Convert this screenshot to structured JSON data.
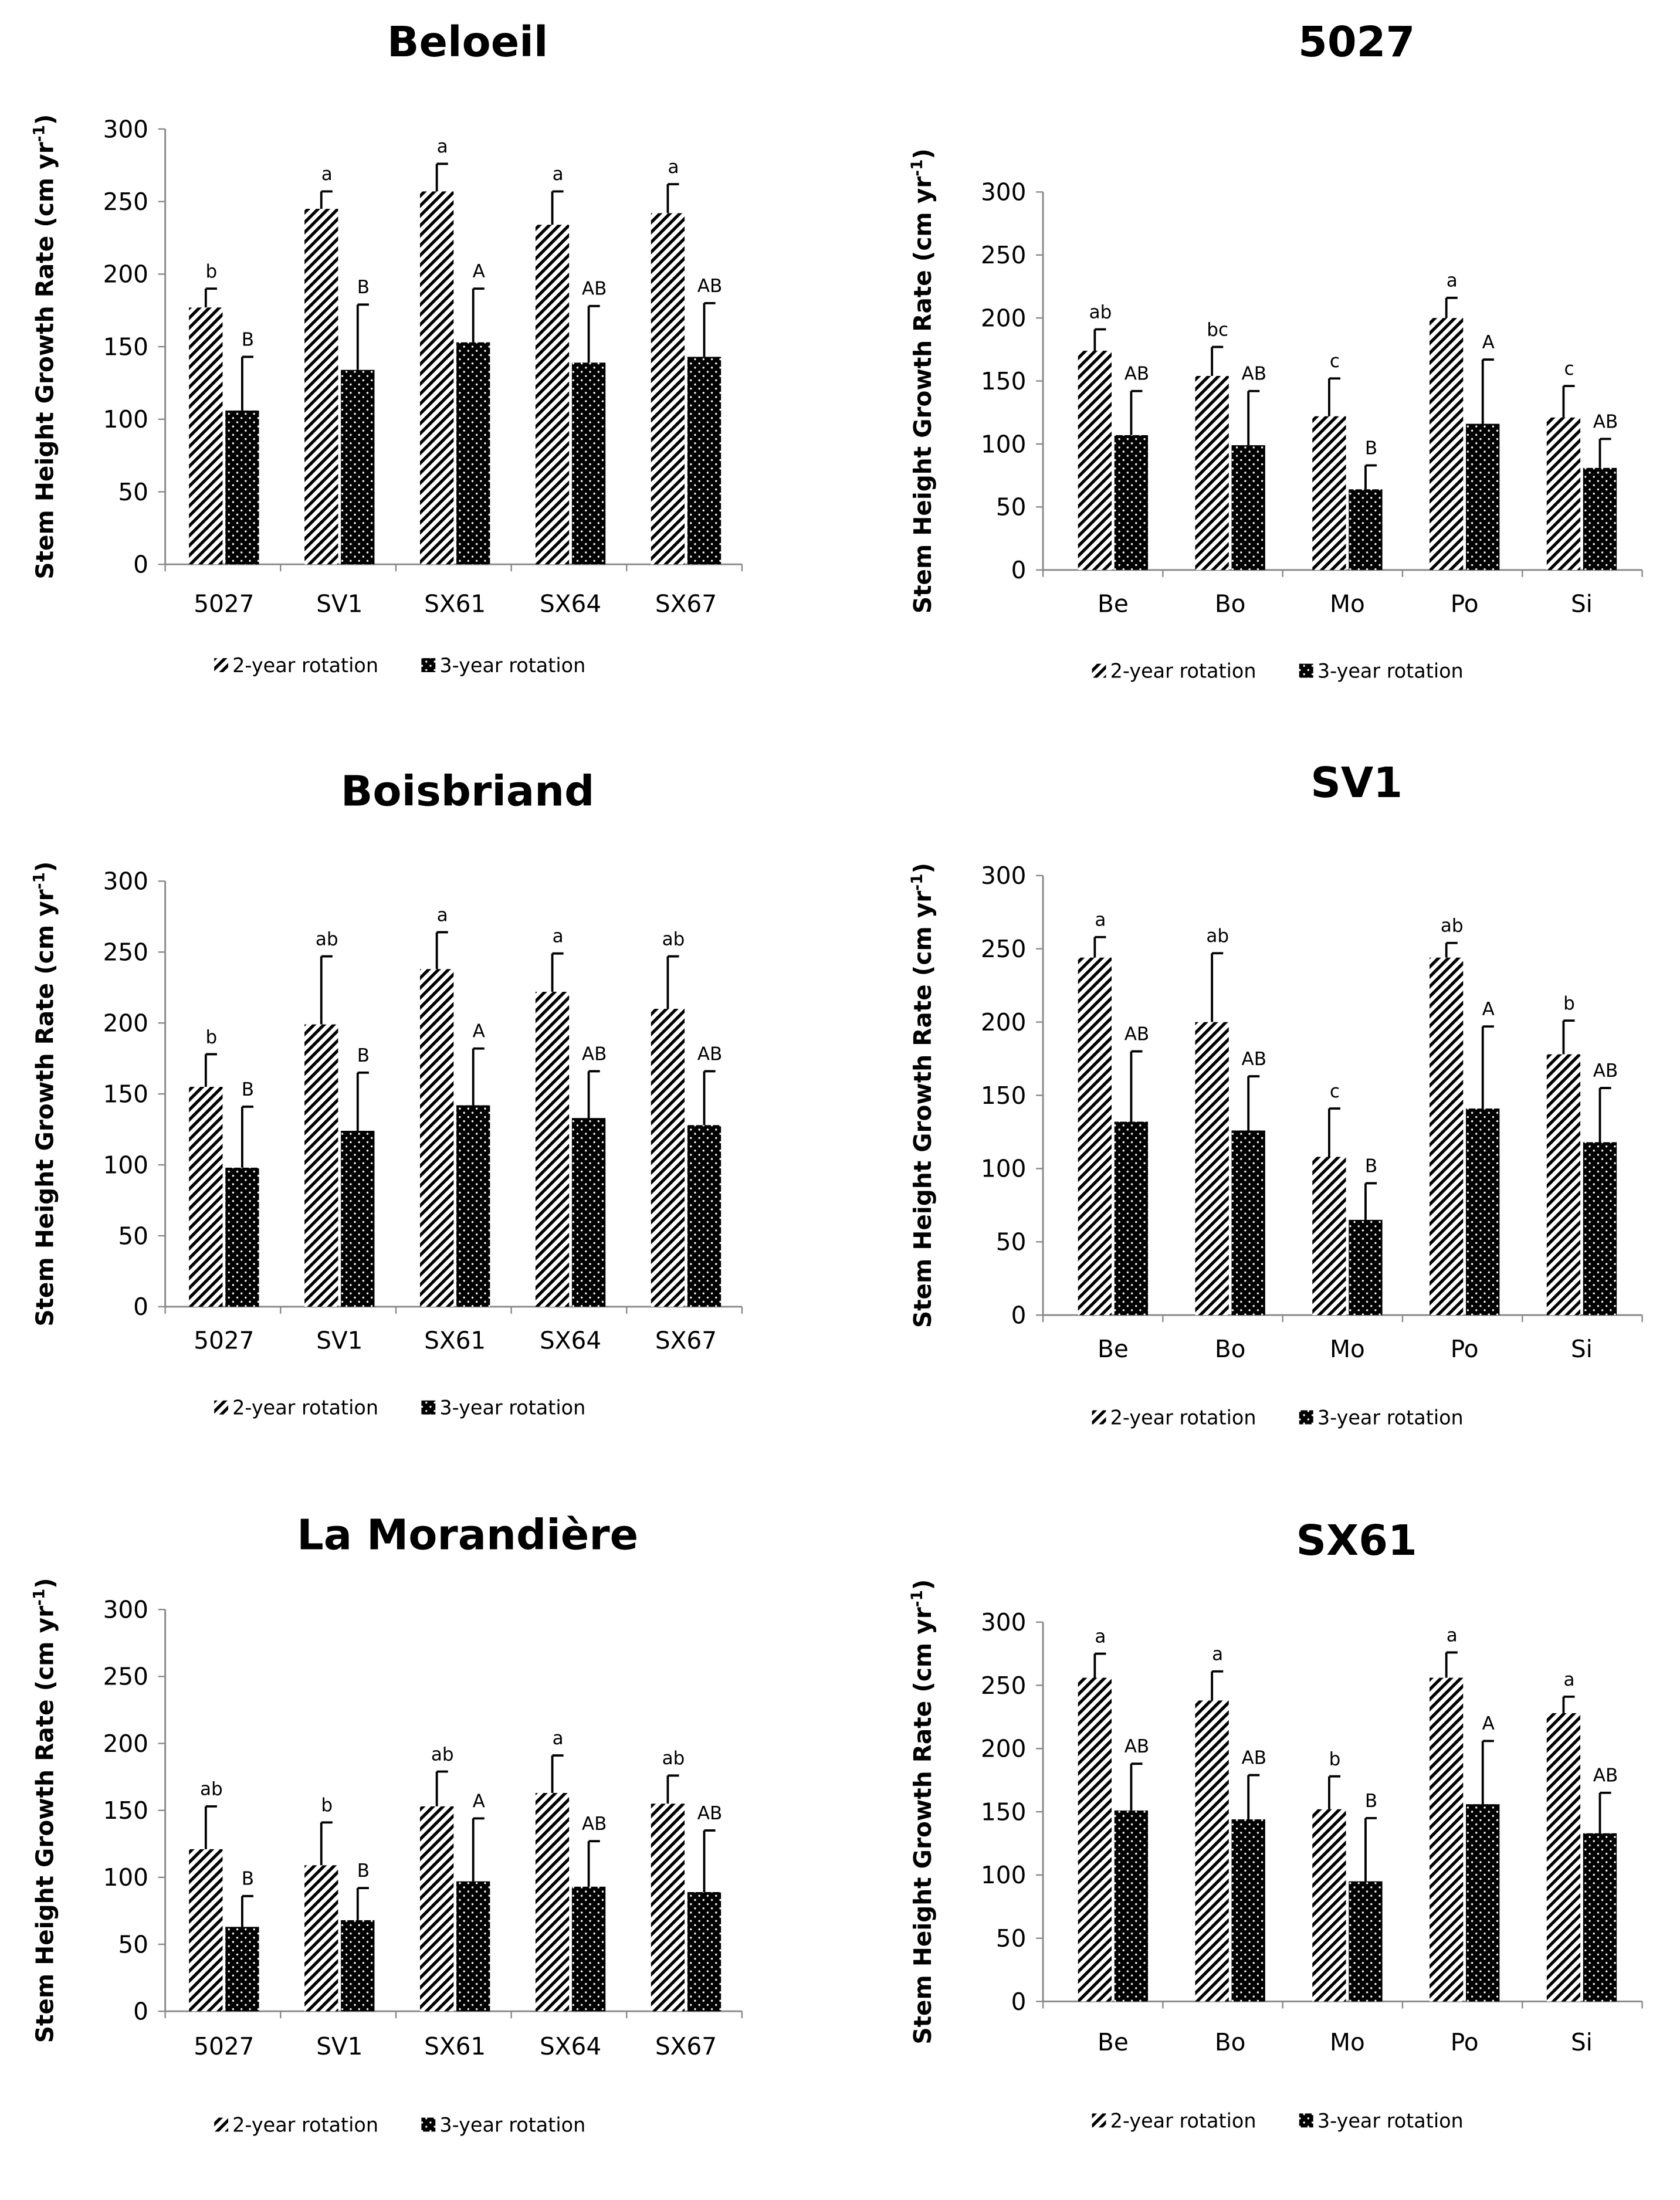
{
  "legend": {
    "two_year": "2-year rotation",
    "three_year": "3-year rotation"
  },
  "colors": {
    "hatch": "#000000",
    "dots_bg": "#000000",
    "dots_fg": "#ffffff"
  },
  "chart_data": [
    {
      "type": "bar",
      "title": "Beloeil",
      "ylabel": "Stem Height Growth Rate (cm yr",
      "ylabel_sup": "-1",
      "ylabel_end": ")",
      "ylim": [
        0,
        300
      ],
      "yticks": [
        "0",
        "50",
        "100",
        "150",
        "200",
        "250",
        "300"
      ],
      "categories": [
        "5027",
        "SV1",
        "SX61",
        "SX64",
        "SX67"
      ],
      "series": [
        {
          "name": "2-year rotation",
          "values": [
            177,
            245,
            257,
            234,
            242
          ],
          "errors": [
            13,
            12,
            19,
            23,
            20
          ],
          "letters": [
            "b",
            "a",
            "a",
            "a",
            "a"
          ]
        },
        {
          "name": "3-year rotation",
          "values": [
            106,
            134,
            153,
            139,
            143
          ],
          "errors": [
            37,
            45,
            37,
            39,
            37
          ],
          "letters": [
            "B",
            "B",
            "A",
            "AB",
            "AB"
          ]
        }
      ]
    },
    {
      "type": "bar",
      "title": "5027",
      "ylabel": "Stem Height Growth Rate (cm yr",
      "ylabel_sup": "-1",
      "ylabel_end": ")",
      "ylim": [
        0,
        300
      ],
      "yticks": [
        "0",
        "50",
        "100",
        "150",
        "200",
        "250",
        "300"
      ],
      "categories": [
        "Be",
        "Bo",
        "Mo",
        "Po",
        "Si"
      ],
      "series": [
        {
          "name": "2-year rotation",
          "values": [
            174,
            154,
            122,
            200,
            121
          ],
          "errors": [
            17,
            23,
            30,
            16,
            25
          ],
          "letters": [
            "ab",
            "bc",
            "c",
            "a",
            "c"
          ]
        },
        {
          "name": "3-year rotation",
          "values": [
            107,
            99,
            64,
            116,
            81
          ],
          "errors": [
            35,
            43,
            19,
            51,
            23
          ],
          "letters": [
            "AB",
            "AB",
            "B",
            "A",
            "AB"
          ]
        }
      ]
    },
    {
      "type": "bar",
      "title": "Boisbriand",
      "ylabel": "Stem Height Growth Rate (cm yr",
      "ylabel_sup": "-1",
      "ylabel_end": ")",
      "ylim": [
        0,
        300
      ],
      "yticks": [
        "0",
        "50",
        "100",
        "150",
        "200",
        "250",
        "300"
      ],
      "categories": [
        "5027",
        "SV1",
        "SX61",
        "SX64",
        "SX67"
      ],
      "series": [
        {
          "name": "2-year rotation",
          "values": [
            155,
            199,
            238,
            222,
            210
          ],
          "errors": [
            23,
            48,
            26,
            27,
            37
          ],
          "letters": [
            "b",
            "ab",
            "a",
            "a",
            "ab"
          ]
        },
        {
          "name": "3-year rotation",
          "values": [
            98,
            124,
            142,
            133,
            128
          ],
          "errors": [
            43,
            41,
            40,
            33,
            38
          ],
          "letters": [
            "B",
            "B",
            "A",
            "AB",
            "AB"
          ]
        }
      ]
    },
    {
      "type": "bar",
      "title": "SV1",
      "ylabel": "Stem Height Growth Rate (cm yr",
      "ylabel_sup": "-1",
      "ylabel_end": ")",
      "ylim": [
        0,
        300
      ],
      "yticks": [
        "0",
        "50",
        "100",
        "150",
        "200",
        "250",
        "300"
      ],
      "categories": [
        "Be",
        "Bo",
        "Mo",
        "Po",
        "Si"
      ],
      "series": [
        {
          "name": "2-year rotation",
          "values": [
            244,
            200,
            108,
            244,
            178
          ],
          "errors": [
            14,
            47,
            33,
            10,
            23
          ],
          "letters": [
            "a",
            "ab",
            "c",
            "ab",
            "b"
          ]
        },
        {
          "name": "3-year rotation",
          "values": [
            132,
            126,
            65,
            141,
            118
          ],
          "errors": [
            48,
            37,
            25,
            56,
            37
          ],
          "letters": [
            "AB",
            "AB",
            "B",
            "A",
            "AB"
          ]
        }
      ]
    },
    {
      "type": "bar",
      "title": "La Morandière",
      "ylabel": "Stem Height Growth Rate (cm yr",
      "ylabel_sup": "-1",
      "ylabel_end": ")",
      "ylim": [
        0,
        300
      ],
      "yticks": [
        "0",
        "50",
        "100",
        "150",
        "200",
        "250",
        "300"
      ],
      "categories": [
        "5027",
        "SV1",
        "SX61",
        "SX64",
        "SX67"
      ],
      "series": [
        {
          "name": "2-year rotation",
          "values": [
            121,
            109,
            153,
            163,
            155
          ],
          "errors": [
            32,
            32,
            26,
            28,
            21
          ],
          "letters": [
            "ab",
            "b",
            "ab",
            "a",
            "ab"
          ]
        },
        {
          "name": "3-year rotation",
          "values": [
            63,
            68,
            97,
            93,
            89
          ],
          "errors": [
            23,
            24,
            47,
            34,
            46
          ],
          "letters": [
            "B",
            "B",
            "A",
            "AB",
            "AB"
          ]
        }
      ]
    },
    {
      "type": "bar",
      "title": "SX61",
      "ylabel": "Stem Height Growth Rate (cm yr",
      "ylabel_sup": "-1",
      "ylabel_end": ")",
      "ylim": [
        0,
        300
      ],
      "yticks": [
        "0",
        "50",
        "100",
        "150",
        "200",
        "250",
        "300"
      ],
      "categories": [
        "Be",
        "Bo",
        "Mo",
        "Po",
        "Si"
      ],
      "series": [
        {
          "name": "2-year rotation",
          "values": [
            256,
            238,
            152,
            256,
            228
          ],
          "errors": [
            19,
            23,
            26,
            20,
            13
          ],
          "letters": [
            "a",
            "a",
            "b",
            "a",
            "a"
          ]
        },
        {
          "name": "3-year rotation",
          "values": [
            151,
            144,
            95,
            156,
            133
          ],
          "errors": [
            37,
            35,
            50,
            50,
            32
          ],
          "letters": [
            "AB",
            "AB",
            "B",
            "A",
            "AB"
          ]
        }
      ]
    }
  ]
}
